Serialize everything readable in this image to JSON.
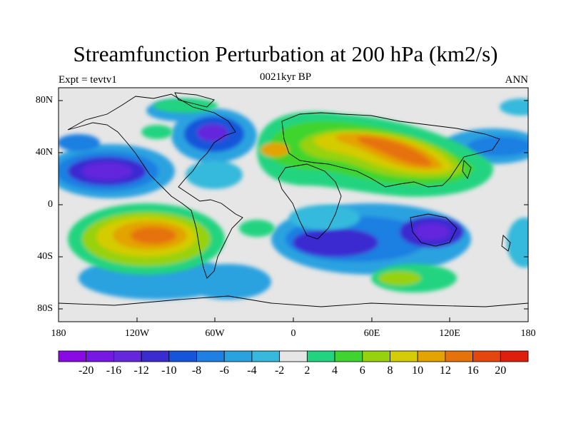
{
  "title": "Streamfunction Perturbation at 200 hPa (km2/s)",
  "left_label": "Expt = tevtv1",
  "center_label": "0021kyr BP",
  "right_label": "ANN",
  "lat_ticks": [
    "80N",
    "40N",
    "0",
    "40S",
    "80S"
  ],
  "lon_ticks": [
    "180",
    "120W",
    "60W",
    "0",
    "60E",
    "120E",
    "180"
  ],
  "colorbar": {
    "labels": [
      "-20",
      "-16",
      "-12",
      "-10",
      "-8",
      "-6",
      "-4",
      "-2",
      "2",
      "4",
      "6",
      "8",
      "10",
      "12",
      "16",
      "20"
    ],
    "colors": [
      "#8a0ae6",
      "#7717e3",
      "#6427dc",
      "#3a2cd0",
      "#1455da",
      "#1f7fe2",
      "#2aa2e0",
      "#36b9dc",
      "#e6e6e6",
      "#22d47f",
      "#3fd42f",
      "#97d20f",
      "#d4cc06",
      "#e3a300",
      "#e6720a",
      "#e5460e",
      "#e01e0e"
    ]
  }
}
